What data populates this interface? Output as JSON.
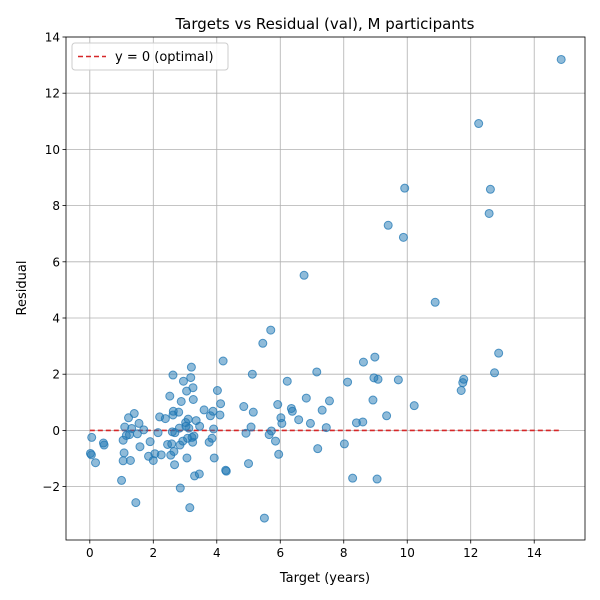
{
  "chart_data": {
    "type": "scatter",
    "title": "Targets vs Residual (val), M participants",
    "xlabel": "Target (years)",
    "ylabel": "Residual",
    "xlim": [
      -0.75,
      15.6
    ],
    "ylim": [
      -3.9,
      14.0
    ],
    "xticks": [
      0,
      2,
      4,
      6,
      8,
      10,
      12,
      14
    ],
    "yticks": [
      -2,
      0,
      2,
      4,
      6,
      8,
      10,
      12,
      14
    ],
    "grid": true,
    "legend_position": "upper-left",
    "reference_line": {
      "label": "y = 0 (optimal)",
      "y": 0,
      "x_range": [
        0,
        14.85
      ],
      "color": "#d62728",
      "style": "dashed"
    },
    "point_color": "#1f77b4",
    "points": [
      [
        0.02,
        -0.82
      ],
      [
        0.05,
        -0.87
      ],
      [
        0.06,
        -0.25
      ],
      [
        0.18,
        -1.15
      ],
      [
        0.43,
        -0.45
      ],
      [
        0.45,
        -0.52
      ],
      [
        1.0,
        -1.78
      ],
      [
        1.05,
        -1.08
      ],
      [
        1.05,
        -0.35
      ],
      [
        1.08,
        -0.8
      ],
      [
        1.1,
        0.12
      ],
      [
        1.15,
        -0.18
      ],
      [
        1.22,
        0.45
      ],
      [
        1.28,
        -1.07
      ],
      [
        1.25,
        -0.15
      ],
      [
        1.32,
        0.07
      ],
      [
        1.4,
        0.6
      ],
      [
        1.45,
        -2.57
      ],
      [
        1.5,
        -0.12
      ],
      [
        1.55,
        0.25
      ],
      [
        1.58,
        -0.58
      ],
      [
        1.7,
        0.02
      ],
      [
        1.85,
        -0.92
      ],
      [
        1.9,
        -0.4
      ],
      [
        2.0,
        -1.07
      ],
      [
        2.05,
        -0.83
      ],
      [
        2.15,
        -0.08
      ],
      [
        2.2,
        0.48
      ],
      [
        2.25,
        -0.87
      ],
      [
        2.38,
        0.42
      ],
      [
        2.45,
        -0.5
      ],
      [
        2.52,
        1.22
      ],
      [
        2.55,
        -0.88
      ],
      [
        2.58,
        -0.48
      ],
      [
        2.6,
        -0.05
      ],
      [
        2.62,
        0.55
      ],
      [
        2.62,
        1.97
      ],
      [
        2.63,
        0.68
      ],
      [
        2.65,
        -0.75
      ],
      [
        2.67,
        -1.22
      ],
      [
        2.68,
        -0.08
      ],
      [
        2.8,
        0.65
      ],
      [
        2.82,
        0.08
      ],
      [
        2.84,
        -0.52
      ],
      [
        2.85,
        -2.05
      ],
      [
        2.88,
        1.03
      ],
      [
        2.93,
        -0.38
      ],
      [
        2.95,
        1.75
      ],
      [
        3.02,
        0.28
      ],
      [
        3.03,
        0.15
      ],
      [
        3.05,
        1.4
      ],
      [
        3.06,
        -0.98
      ],
      [
        3.08,
        -0.28
      ],
      [
        3.1,
        0.4
      ],
      [
        3.12,
        0.08
      ],
      [
        3.15,
        -2.75
      ],
      [
        3.18,
        1.88
      ],
      [
        3.2,
        2.25
      ],
      [
        3.22,
        -0.25
      ],
      [
        3.24,
        -0.42
      ],
      [
        3.25,
        1.52
      ],
      [
        3.26,
        1.1
      ],
      [
        3.28,
        -0.2
      ],
      [
        3.3,
        -1.62
      ],
      [
        3.35,
        0.35
      ],
      [
        3.45,
        -1.55
      ],
      [
        3.46,
        0.15
      ],
      [
        3.6,
        0.73
      ],
      [
        3.76,
        -0.42
      ],
      [
        3.8,
        0.52
      ],
      [
        3.85,
        -0.28
      ],
      [
        3.88,
        0.68
      ],
      [
        3.9,
        0.05
      ],
      [
        3.92,
        -0.98
      ],
      [
        4.02,
        1.42
      ],
      [
        4.1,
        0.55
      ],
      [
        4.12,
        0.95
      ],
      [
        4.2,
        2.47
      ],
      [
        4.28,
        -1.42
      ],
      [
        4.3,
        -1.45
      ],
      [
        4.85,
        0.85
      ],
      [
        4.92,
        -0.1
      ],
      [
        5.0,
        -1.18
      ],
      [
        5.08,
        0.12
      ],
      [
        5.12,
        2.0
      ],
      [
        5.15,
        0.65
      ],
      [
        5.45,
        3.1
      ],
      [
        5.5,
        -3.12
      ],
      [
        5.65,
        -0.15
      ],
      [
        5.7,
        3.57
      ],
      [
        5.72,
        -0.02
      ],
      [
        5.85,
        -0.38
      ],
      [
        5.92,
        0.92
      ],
      [
        5.95,
        -0.85
      ],
      [
        6.02,
        0.45
      ],
      [
        6.05,
        0.25
      ],
      [
        6.22,
        1.75
      ],
      [
        6.35,
        0.78
      ],
      [
        6.38,
        0.68
      ],
      [
        6.58,
        0.38
      ],
      [
        6.75,
        5.52
      ],
      [
        6.82,
        1.15
      ],
      [
        6.95,
        0.25
      ],
      [
        7.15,
        2.08
      ],
      [
        7.18,
        -0.65
      ],
      [
        7.32,
        0.72
      ],
      [
        7.45,
        0.1
      ],
      [
        7.55,
        1.05
      ],
      [
        8.02,
        -0.48
      ],
      [
        8.12,
        1.72
      ],
      [
        8.28,
        -1.7
      ],
      [
        8.4,
        0.27
      ],
      [
        8.6,
        0.3
      ],
      [
        8.62,
        2.43
      ],
      [
        8.92,
        1.08
      ],
      [
        8.95,
        1.87
      ],
      [
        8.98,
        2.61
      ],
      [
        9.05,
        -1.73
      ],
      [
        9.08,
        1.82
      ],
      [
        9.35,
        0.52
      ],
      [
        9.4,
        7.3
      ],
      [
        9.72,
        1.8
      ],
      [
        9.88,
        6.87
      ],
      [
        9.92,
        8.62
      ],
      [
        10.22,
        0.88
      ],
      [
        10.88,
        4.56
      ],
      [
        11.7,
        1.42
      ],
      [
        11.75,
        1.7
      ],
      [
        11.78,
        1.82
      ],
      [
        12.25,
        10.92
      ],
      [
        12.58,
        7.72
      ],
      [
        12.62,
        8.58
      ],
      [
        12.75,
        2.05
      ],
      [
        12.88,
        2.75
      ],
      [
        14.85,
        13.2
      ]
    ]
  }
}
